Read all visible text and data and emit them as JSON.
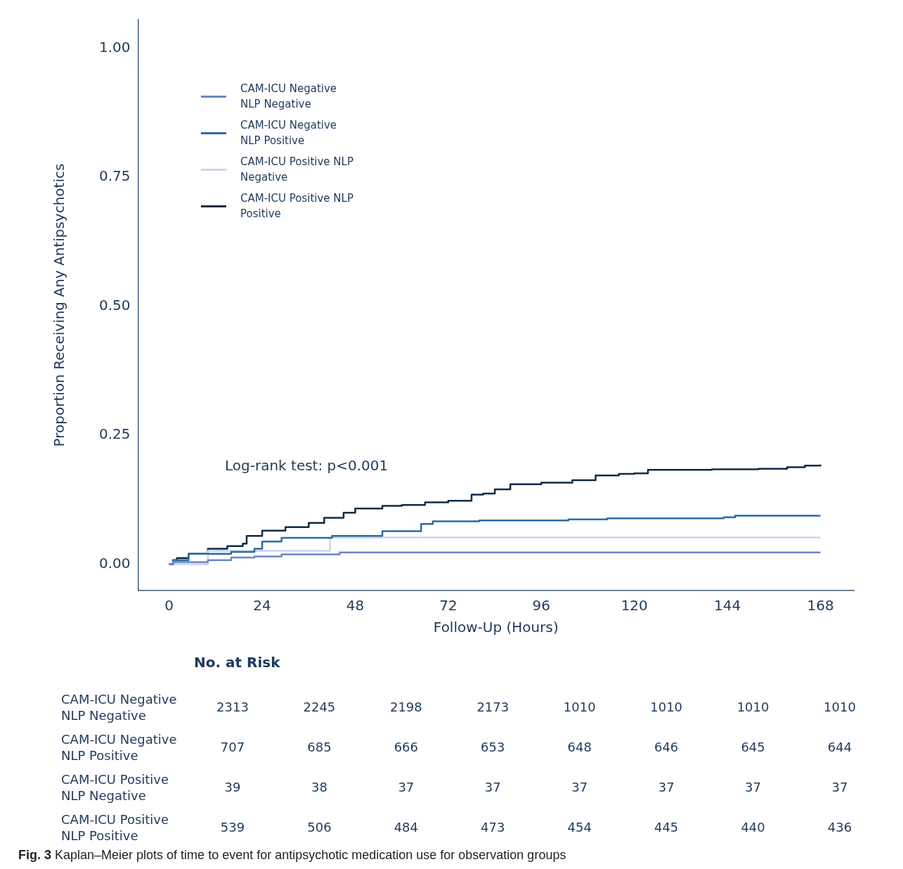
{
  "chart_data": {
    "type": "step",
    "xlabel": "Follow-Up (Hours)",
    "ylabel": "Proportion Receiving Any Antipsychotics",
    "xlim": [
      -8,
      176.6
    ],
    "ylim": [
      -0.051,
      1.055
    ],
    "xticks": [
      0,
      24,
      48,
      72,
      96,
      120,
      144,
      168
    ],
    "yticks": [
      {
        "value": 0,
        "label": "0.00"
      },
      {
        "value": 0.25,
        "label": "0.25"
      },
      {
        "value": 0.5,
        "label": "0.50"
      },
      {
        "value": 0.75,
        "label": "0.75"
      },
      {
        "value": 1,
        "label": "1.00"
      }
    ],
    "grid": false,
    "legend": "top left",
    "marker": "none",
    "line_style": "solid",
    "series": [
      {
        "name": "CAM-ICU Negative NLP Negative",
        "color": "#6a85c8",
        "x": [
          0,
          1,
          10,
          16,
          22,
          29,
          44,
          168
        ],
        "values": [
          0,
          0.004,
          0.008,
          0.013,
          0.015,
          0.019,
          0.023,
          0.023
        ]
      },
      {
        "name": "CAM-ICU Negative NLP Positive",
        "color": "#2c6aa8",
        "x": [
          0,
          1,
          5,
          16,
          22,
          24,
          29,
          42,
          55,
          65,
          68,
          80,
          103,
          113,
          143,
          146,
          168
        ],
        "values": [
          0,
          0.008,
          0.02,
          0.024,
          0.03,
          0.044,
          0.051,
          0.055,
          0.064,
          0.078,
          0.083,
          0.085,
          0.087,
          0.089,
          0.091,
          0.094,
          0.094
        ]
      },
      {
        "name": "CAM-ICU Positive NLP Negative",
        "color": "#c9d4ee",
        "x": [
          0,
          10,
          41.5,
          168
        ],
        "values": [
          0,
          0.026,
          0.052,
          0.052
        ]
      },
      {
        "name": "CAM-ICU Positive NLP Positive",
        "color": "#0f2b45",
        "x": [
          0,
          1,
          2,
          5,
          10,
          15,
          19,
          20,
          24,
          30,
          36,
          40,
          45,
          48,
          55,
          60,
          66,
          72,
          78,
          81,
          84,
          88,
          96,
          104,
          110,
          116,
          120,
          123.5,
          140,
          152,
          159.4,
          164,
          168
        ],
        "values": [
          0,
          0.008,
          0.012,
          0.02,
          0.03,
          0.035,
          0.04,
          0.055,
          0.065,
          0.072,
          0.08,
          0.09,
          0.1,
          0.108,
          0.113,
          0.115,
          0.12,
          0.123,
          0.135,
          0.137,
          0.145,
          0.155,
          0.158,
          0.163,
          0.172,
          0.175,
          0.176,
          0.183,
          0.184,
          0.185,
          0.188,
          0.191,
          0.193
        ]
      }
    ],
    "annotations": [
      "Log-rank test: p<0.001",
      "No. at Risk",
      "2313 2245 2198 2173 1010 1010 1010 1010",
      "707 685 666 653 648 646 645 644",
      "39 38 37 37 37 37 37 37",
      "539 506 484 473 454 445 440 436",
      "Fig. 3 Kaplan–Meier plots of time to event for antipsychotic medication use for observation groups"
    ]
  }
}
